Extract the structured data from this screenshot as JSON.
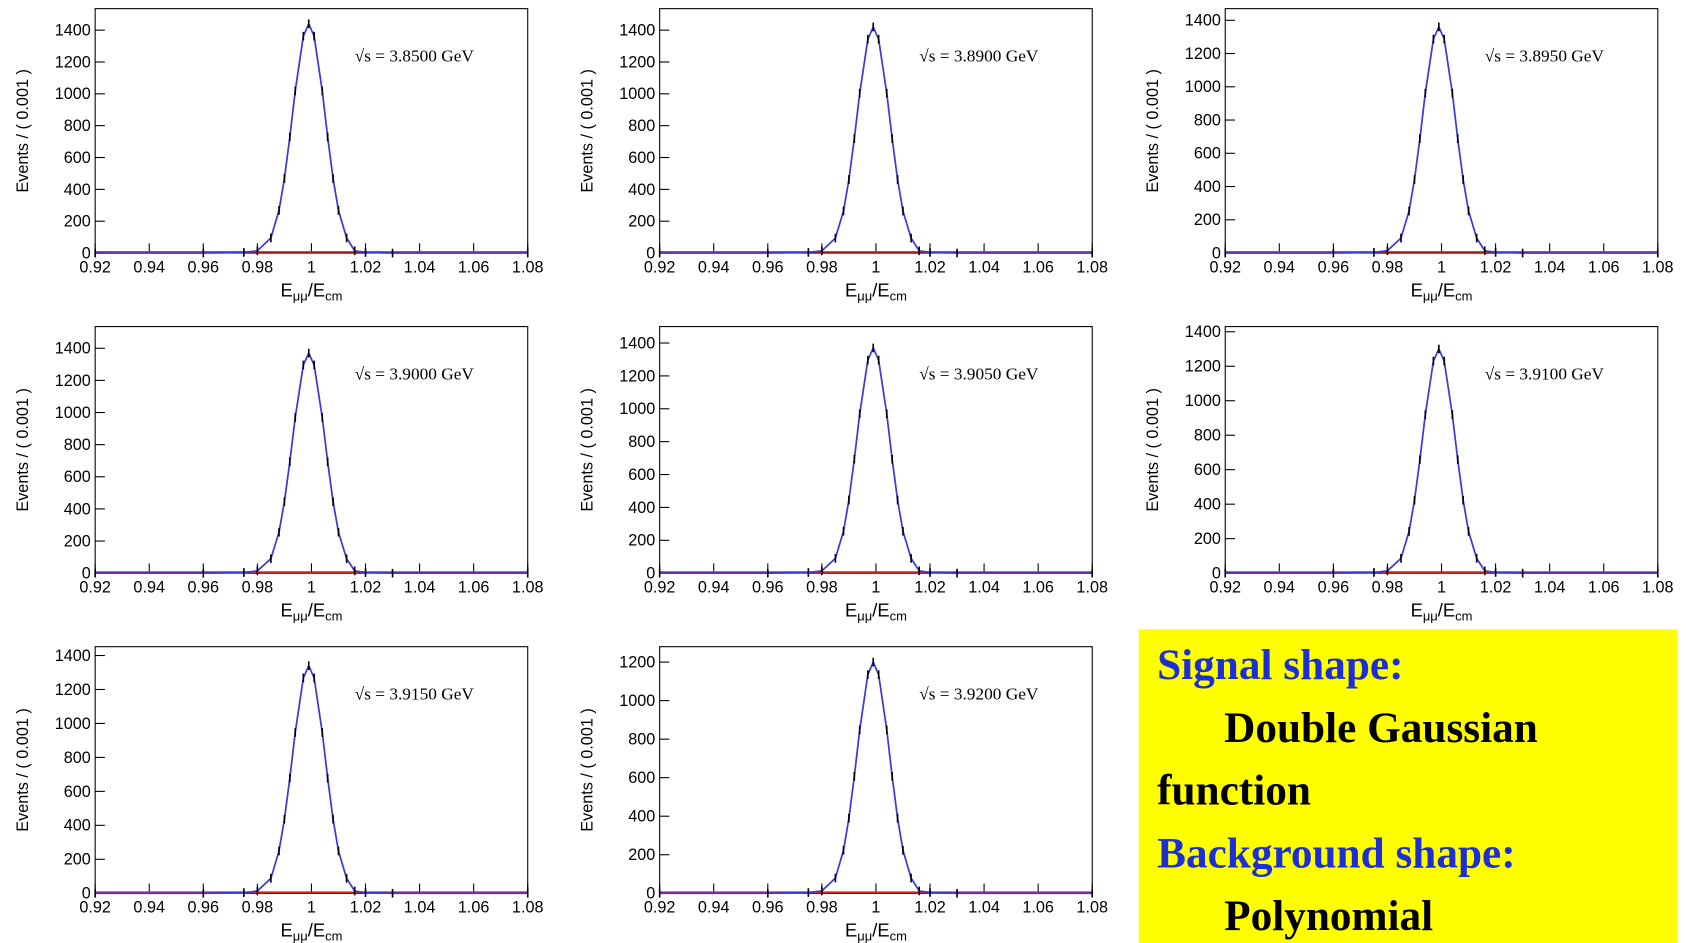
{
  "chart_data": [
    {
      "type": "line",
      "annotation": "√s = 3.8500 GeV",
      "ylabel": "Events / ( 0.001 )",
      "xlabel_parts": [
        "E",
        "μμ",
        "/E",
        "cm"
      ],
      "color": "#3a3adf",
      "x": [
        0.92,
        0.96,
        0.975,
        0.98,
        0.985,
        0.988,
        0.99,
        0.992,
        0.994,
        0.997,
        0.999,
        1.001,
        1.004,
        1.006,
        1.008,
        1.01,
        1.013,
        1.016,
        1.02,
        1.03,
        1.08
      ],
      "values": [
        0,
        0,
        4,
        14,
        95,
        268,
        468,
        729,
        1018,
        1362,
        1440,
        1362,
        1018,
        729,
        468,
        268,
        95,
        14,
        4,
        0,
        0
      ],
      "xlim": [
        0.92,
        1.08
      ],
      "xticks": [
        0.92,
        0.94,
        0.96,
        0.98,
        1,
        1.02,
        1.04,
        1.06,
        1.08
      ],
      "ylim": [
        0,
        1535
      ],
      "yticks": [
        0,
        200,
        400,
        600,
        800,
        1000,
        1200,
        1400
      ]
    },
    {
      "type": "line",
      "annotation": "√s = 3.8900 GeV",
      "ylabel": "Events / ( 0.001 )",
      "xlabel_parts": [
        "E",
        "μμ",
        "/E",
        "cm"
      ],
      "color": "#3a3adf",
      "x": [
        0.92,
        0.96,
        0.975,
        0.98,
        0.985,
        0.988,
        0.99,
        0.992,
        0.994,
        0.997,
        0.999,
        1.001,
        1.004,
        1.006,
        1.008,
        1.01,
        1.013,
        1.016,
        1.02,
        1.03,
        1.08
      ],
      "values": [
        0,
        0,
        4,
        14,
        94,
        264,
        462,
        719,
        1004,
        1343,
        1420,
        1343,
        1004,
        719,
        462,
        264,
        94,
        14,
        4,
        0,
        0
      ],
      "xlim": [
        0.92,
        1.08
      ],
      "xticks": [
        0.92,
        0.94,
        0.96,
        0.98,
        1,
        1.02,
        1.04,
        1.06,
        1.08
      ],
      "ylim": [
        0,
        1535
      ],
      "yticks": [
        0,
        200,
        400,
        600,
        800,
        1000,
        1200,
        1400
      ]
    },
    {
      "type": "line",
      "annotation": "√s = 3.8950 GeV",
      "ylabel": "Events / ( 0.001 )",
      "xlabel_parts": [
        "E",
        "μμ",
        "/E",
        "cm"
      ],
      "color": "#3a3adf",
      "x": [
        0.92,
        0.96,
        0.975,
        0.98,
        0.985,
        0.988,
        0.99,
        0.992,
        0.994,
        0.997,
        0.999,
        1.001,
        1.004,
        1.006,
        1.008,
        1.01,
        1.013,
        1.016,
        1.02,
        1.03,
        1.08
      ],
      "values": [
        0,
        0,
        4,
        14,
        90,
        253,
        442,
        688,
        962,
        1287,
        1360,
        1287,
        962,
        688,
        442,
        253,
        90,
        14,
        4,
        0,
        0
      ],
      "xlim": [
        0.92,
        1.08
      ],
      "xticks": [
        0.92,
        0.94,
        0.96,
        0.98,
        1,
        1.02,
        1.04,
        1.06,
        1.08
      ],
      "ylim": [
        0,
        1470
      ],
      "yticks": [
        0,
        200,
        400,
        600,
        800,
        1000,
        1200,
        1400
      ]
    },
    {
      "type": "line",
      "annotation": "√s = 3.9000 GeV",
      "ylabel": "Events / ( 0.001 )",
      "xlabel_parts": [
        "E",
        "μμ",
        "/E",
        "cm"
      ],
      "color": "#3a3adf",
      "x": [
        0.92,
        0.96,
        0.975,
        0.98,
        0.985,
        0.988,
        0.99,
        0.992,
        0.994,
        0.997,
        0.999,
        1.001,
        1.004,
        1.006,
        1.008,
        1.01,
        1.013,
        1.016,
        1.02,
        1.03,
        1.08
      ],
      "values": [
        0,
        0,
        4,
        14,
        90,
        255,
        445,
        693,
        969,
        1296,
        1370,
        1296,
        969,
        693,
        445,
        255,
        90,
        14,
        4,
        0,
        0
      ],
      "xlim": [
        0.92,
        1.08
      ],
      "xticks": [
        0.92,
        0.94,
        0.96,
        0.98,
        1,
        1.02,
        1.04,
        1.06,
        1.08
      ],
      "ylim": [
        0,
        1535
      ],
      "yticks": [
        0,
        200,
        400,
        600,
        800,
        1000,
        1200,
        1400
      ]
    },
    {
      "type": "line",
      "annotation": "√s = 3.9050 GeV",
      "ylabel": "Events / ( 0.001 )",
      "xlabel_parts": [
        "E",
        "μμ",
        "/E",
        "cm"
      ],
      "color": "#3a3adf",
      "x": [
        0.92,
        0.96,
        0.975,
        0.98,
        0.985,
        0.988,
        0.99,
        0.992,
        0.994,
        0.997,
        0.999,
        1.001,
        1.004,
        1.006,
        1.008,
        1.01,
        1.013,
        1.016,
        1.02,
        1.03,
        1.08
      ],
      "values": [
        0,
        0,
        4,
        14,
        90,
        255,
        445,
        693,
        969,
        1296,
        1370,
        1296,
        969,
        693,
        445,
        255,
        90,
        14,
        4,
        0,
        0
      ],
      "xlim": [
        0.92,
        1.08
      ],
      "xticks": [
        0.92,
        0.94,
        0.96,
        0.98,
        1,
        1.02,
        1.04,
        1.06,
        1.08
      ],
      "ylim": [
        0,
        1500
      ],
      "yticks": [
        0,
        200,
        400,
        600,
        800,
        1000,
        1200,
        1400
      ]
    },
    {
      "type": "line",
      "annotation": "√s = 3.9100 GeV",
      "ylabel": "Events / ( 0.001 )",
      "xlabel_parts": [
        "E",
        "μμ",
        "/E",
        "cm"
      ],
      "color": "#3a3adf",
      "x": [
        0.92,
        0.96,
        0.975,
        0.98,
        0.985,
        0.988,
        0.99,
        0.992,
        0.994,
        0.997,
        0.999,
        1.001,
        1.004,
        1.006,
        1.008,
        1.01,
        1.013,
        1.016,
        1.02,
        1.03,
        1.08
      ],
      "values": [
        0,
        0,
        4,
        13,
        86,
        242,
        423,
        658,
        919,
        1230,
        1300,
        1230,
        919,
        658,
        423,
        242,
        86,
        13,
        4,
        0,
        0
      ],
      "xlim": [
        0.92,
        1.08
      ],
      "xticks": [
        0.92,
        0.94,
        0.96,
        0.98,
        1,
        1.02,
        1.04,
        1.06,
        1.08
      ],
      "ylim": [
        0,
        1430
      ],
      "yticks": [
        0,
        200,
        400,
        600,
        800,
        1000,
        1200,
        1400
      ]
    },
    {
      "type": "line",
      "annotation": "√s = 3.9150 GeV",
      "ylabel": "Events / ( 0.001 )",
      "xlabel_parts": [
        "E",
        "μμ",
        "/E",
        "cm"
      ],
      "color": "#3a3adf",
      "x": [
        0.92,
        0.96,
        0.975,
        0.98,
        0.985,
        0.988,
        0.99,
        0.992,
        0.994,
        0.997,
        0.999,
        1.001,
        1.004,
        1.006,
        1.008,
        1.01,
        1.013,
        1.016,
        1.02,
        1.03,
        1.08
      ],
      "values": [
        0,
        0,
        4,
        13,
        88,
        249,
        436,
        678,
        947,
        1268,
        1340,
        1268,
        947,
        678,
        436,
        249,
        88,
        13,
        4,
        0,
        0
      ],
      "xlim": [
        0.92,
        1.08
      ],
      "xticks": [
        0.92,
        0.94,
        0.96,
        0.98,
        1,
        1.02,
        1.04,
        1.06,
        1.08
      ],
      "ylim": [
        0,
        1452
      ],
      "yticks": [
        0,
        200,
        400,
        600,
        800,
        1000,
        1200,
        1400
      ]
    },
    {
      "type": "line",
      "annotation": "√s = 3.9200 GeV",
      "ylabel": "Events / ( 0.001 )",
      "xlabel_parts": [
        "E",
        "μμ",
        "/E",
        "cm"
      ],
      "color": "#3a3adf",
      "x": [
        0.92,
        0.96,
        0.975,
        0.98,
        0.985,
        0.988,
        0.99,
        0.992,
        0.994,
        0.997,
        0.999,
        1.001,
        1.004,
        1.006,
        1.008,
        1.01,
        1.013,
        1.016,
        1.02,
        1.03,
        1.08
      ],
      "values": [
        0,
        0,
        4,
        12,
        79,
        223,
        390,
        607,
        848,
        1135,
        1200,
        1135,
        848,
        607,
        390,
        223,
        79,
        12,
        4,
        0,
        0
      ],
      "xlim": [
        0.92,
        1.08
      ],
      "xticks": [
        0.92,
        0.94,
        0.96,
        0.98,
        1,
        1.02,
        1.04,
        1.06,
        1.08
      ],
      "ylim": [
        0,
        1280
      ],
      "yticks": [
        0,
        200,
        400,
        600,
        800,
        1000,
        1200
      ]
    }
  ],
  "textbox": {
    "lines": [
      "Signal shape:",
      "Double Gaussian",
      "function",
      "Background shape:",
      "Polynomial"
    ]
  }
}
